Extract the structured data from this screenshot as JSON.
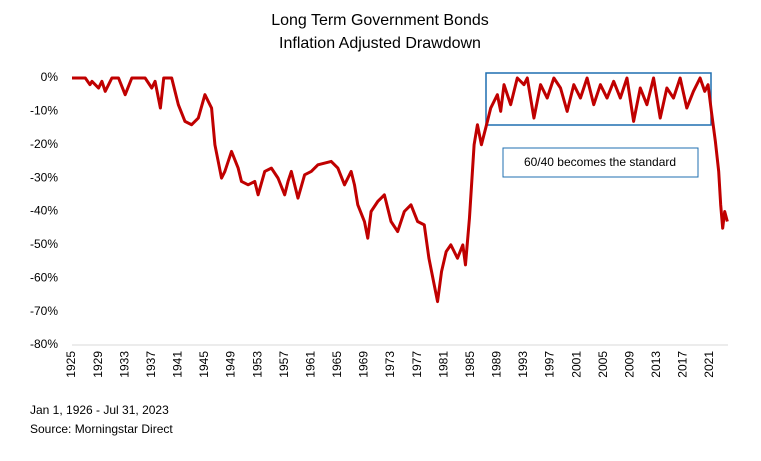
{
  "chart_data": {
    "type": "line",
    "title": [
      "Long Term Government Bonds",
      "Inflation Adjusted Drawdown"
    ],
    "x": [
      1925,
      1927,
      1927.7,
      1928,
      1929,
      1929.5,
      1930,
      1931,
      1932,
      1933,
      1934,
      1936,
      1937,
      1937.5,
      1938.3,
      1938.8,
      1940,
      1940.5,
      1941,
      1942,
      1943,
      1944,
      1945,
      1946,
      1946.5,
      1947.5,
      1948,
      1949,
      1950,
      1950.5,
      1951.5,
      1952.5,
      1953,
      1954,
      1955,
      1956,
      1957,
      1957.5,
      1958,
      1959,
      1960,
      1961,
      1962,
      1964,
      1965,
      1966,
      1967,
      1967.5,
      1968,
      1969,
      1969.5,
      1970,
      1971,
      1972,
      1973,
      1974,
      1975,
      1976,
      1977,
      1978,
      1978.7,
      1979.5,
      1980,
      1980.6,
      1981.3,
      1982,
      1983,
      1983.8,
      1984.2,
      1984.8,
      1985.5,
      1986,
      1986.6,
      1987.5,
      1988,
      1989,
      1989.5,
      1990,
      1991,
      1992,
      1993,
      1993.5,
      1994.5,
      1995.5,
      1996.5,
      1997.5,
      1998.5,
      1999.5,
      2000.5,
      2001.5,
      2002.5,
      2003.5,
      2004.5,
      2005.5,
      2006.5,
      2007.5,
      2008.5,
      2009.5,
      2010.5,
      2011.5,
      2012.5,
      2013.5,
      2014.5,
      2015.5,
      2016.5,
      2017.5,
      2018.5,
      2019.5,
      2020.2,
      2020.7,
      2021.2,
      2021.8,
      2022.3,
      2022.6,
      2022.9,
      2023.2,
      2023.6
    ],
    "series": [
      {
        "color": "#c00000",
        "values": [
          0,
          0,
          -2,
          -1,
          -3,
          -1,
          -4,
          0,
          0,
          -5,
          0,
          0,
          -3,
          -1,
          -9,
          0,
          0,
          -4,
          -8,
          -13,
          -14,
          -12,
          -5,
          -9,
          -20,
          -30,
          -28,
          -22,
          -27,
          -31,
          -32,
          -31,
          -35,
          -28,
          -27,
          -30,
          -35,
          -31,
          -28,
          -36,
          -29,
          -28,
          -26,
          -25,
          -27,
          -32,
          -28,
          -32,
          -38,
          -43,
          -48,
          -40,
          -37,
          -35,
          -43,
          -46,
          -40,
          -38,
          -43,
          -44,
          -54,
          -62,
          -67,
          -58,
          -52,
          -50,
          -54,
          -50,
          -56,
          -42,
          -20,
          -14,
          -20,
          -13,
          -9,
          -5,
          -10,
          -2,
          -8,
          0,
          -2,
          0,
          -12,
          -2,
          -6,
          0,
          -3,
          -10,
          -2,
          -6,
          0,
          -8,
          -2,
          -6,
          -1,
          -6,
          0,
          -13,
          -3,
          -8,
          0,
          -12,
          -3,
          -6,
          0,
          -9,
          -4,
          0,
          -4,
          -2,
          -10,
          -19,
          -28,
          -38,
          -45,
          -40,
          -43
        ]
      }
    ],
    "xlim": [
      1925,
      2023.7
    ],
    "xticks": [
      1925,
      1929,
      1933,
      1937,
      1941,
      1945,
      1949,
      1953,
      1957,
      1961,
      1965,
      1969,
      1973,
      1977,
      1981,
      1985,
      1989,
      1993,
      1997,
      2001,
      2005,
      2009,
      2013,
      2017,
      2021
    ],
    "ylim": [
      -80,
      0
    ],
    "yticks": [
      {
        "value": 0,
        "label": "0%"
      },
      {
        "value": -10,
        "label": "-10%"
      },
      {
        "value": -20,
        "label": "-20%"
      },
      {
        "value": -30,
        "label": "-30%"
      },
      {
        "value": -40,
        "label": "-40%"
      },
      {
        "value": -50,
        "label": "-50%"
      },
      {
        "value": -60,
        "label": "-60%"
      },
      {
        "value": -70,
        "label": "-70%"
      },
      {
        "value": -80,
        "label": "-80%"
      }
    ],
    "annotation": "60/40 becomes the standard",
    "footnotes": [
      "Jan 1, 1926 - Jul 31, 2023",
      "Source: Morningstar Direct"
    ]
  }
}
